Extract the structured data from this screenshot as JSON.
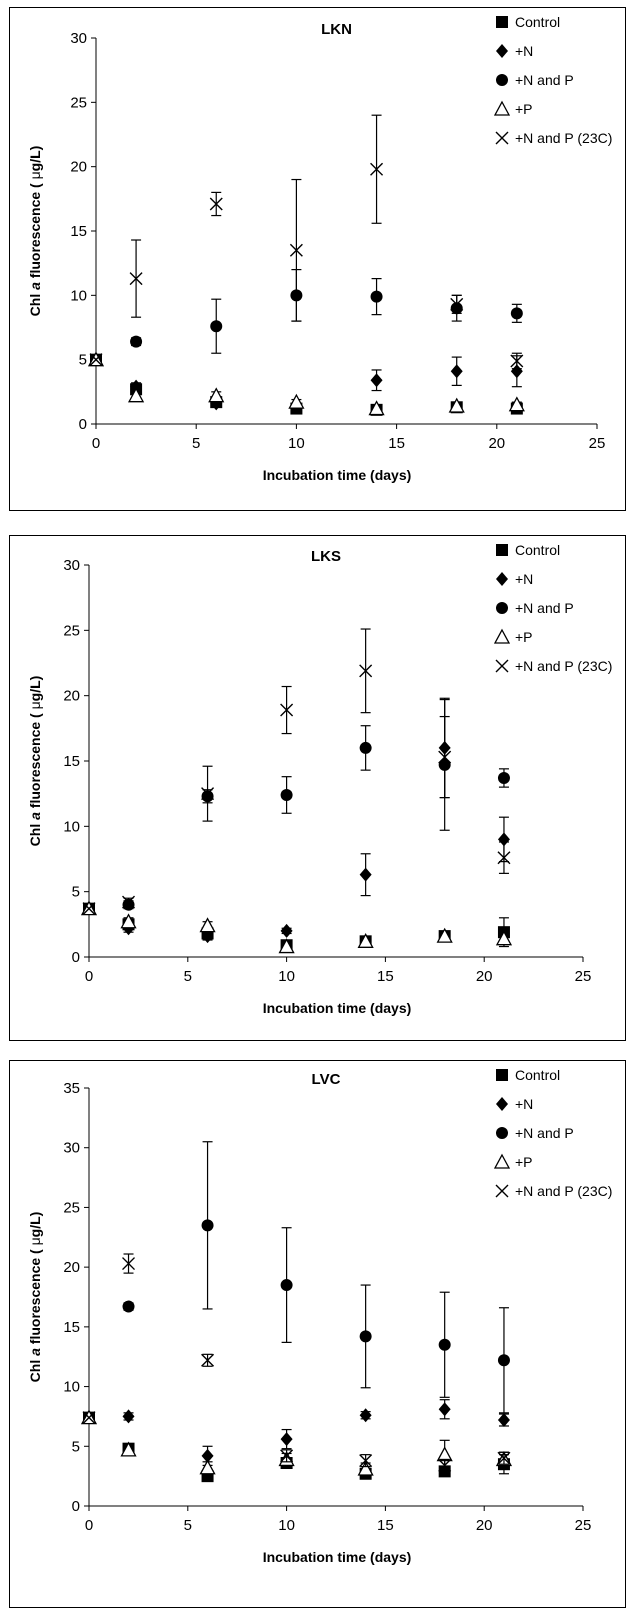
{
  "legend": [
    {
      "key": "control",
      "label": "Control",
      "marker": "square-filled"
    },
    {
      "key": "n",
      "label": "+N",
      "marker": "diamond-filled"
    },
    {
      "key": "np",
      "label": "+N and P",
      "marker": "circle-filled"
    },
    {
      "key": "p",
      "label": "+P",
      "marker": "triangle-open"
    },
    {
      "key": "np23",
      "label": "+N and P (23C)",
      "marker": "x-cross"
    }
  ],
  "chart_data": [
    {
      "type": "scatter",
      "title": "LKN",
      "xlabel": "Incubation time (days)",
      "ylabel_parts": [
        "Chl ",
        "a",
        " fluorescence ( ",
        "μ",
        "g/L)"
      ],
      "xlim": [
        0,
        25
      ],
      "ylim": [
        0,
        30
      ],
      "xticks": [
        0,
        5,
        10,
        15,
        20,
        25
      ],
      "yticks": [
        0,
        5,
        10,
        15,
        20,
        25,
        30
      ],
      "legend_position": "top-right",
      "series": [
        {
          "key": "control",
          "name": "Control",
          "points": [
            [
              0,
              5,
              0
            ],
            [
              2,
              2.7,
              0.3
            ],
            [
              6,
              1.7,
              0.3
            ],
            [
              10,
              1.2,
              0.2
            ],
            [
              14,
              1.1,
              0.2
            ],
            [
              18,
              1.3,
              0.2
            ],
            [
              21,
              1.2,
              0.2
            ]
          ]
        },
        {
          "key": "n",
          "name": "+N",
          "points": [
            [
              0,
              5,
              0
            ],
            [
              2,
              2.9,
              0.3
            ],
            [
              6,
              1.6,
              0.3
            ],
            [
              10,
              1.3,
              0.2
            ],
            [
              14,
              3.4,
              0.8
            ],
            [
              18,
              4.1,
              1.1
            ],
            [
              21,
              4.1,
              1.2
            ]
          ]
        },
        {
          "key": "np",
          "name": "+N and P",
          "points": [
            [
              0,
              5,
              0
            ],
            [
              2,
              6.4,
              0.3
            ],
            [
              6,
              7.6,
              2.1
            ],
            [
              10,
              10.0,
              2.0
            ],
            [
              14,
              9.9,
              1.4
            ],
            [
              18,
              9.0,
              1.0
            ],
            [
              21,
              8.6,
              0.7
            ]
          ]
        },
        {
          "key": "p",
          "name": "+P",
          "points": [
            [
              0,
              5,
              0
            ],
            [
              2,
              2.2,
              0.3
            ],
            [
              6,
              2.2,
              0.3
            ],
            [
              10,
              1.7,
              0.2
            ],
            [
              14,
              1.2,
              0.2
            ],
            [
              18,
              1.4,
              0.2
            ],
            [
              21,
              1.5,
              0.2
            ]
          ]
        },
        {
          "key": "np23",
          "name": "+N and P (23C)",
          "points": [
            [
              0,
              5,
              0
            ],
            [
              2,
              11.3,
              3.0
            ],
            [
              6,
              17.1,
              0.9
            ],
            [
              10,
              13.5,
              5.5
            ],
            [
              14,
              19.8,
              4.2
            ],
            [
              18,
              9.3,
              0.7
            ],
            [
              21,
              4.9,
              0.6
            ]
          ]
        }
      ]
    },
    {
      "type": "scatter",
      "title": "LKS",
      "xlabel": "Incubation time (days)",
      "ylabel_parts": [
        "Chl ",
        "a",
        " fluorescence ( ",
        "μ",
        "g/L)"
      ],
      "xlim": [
        0,
        25
      ],
      "ylim": [
        0,
        30
      ],
      "xticks": [
        0,
        5,
        10,
        15,
        20,
        25
      ],
      "yticks": [
        0,
        5,
        10,
        15,
        20,
        25,
        30
      ],
      "legend_position": "top-right",
      "series": [
        {
          "key": "control",
          "name": "Control",
          "points": [
            [
              0,
              3.7,
              0
            ],
            [
              2,
              2.5,
              0.3
            ],
            [
              6,
              1.8,
              0.3
            ],
            [
              10,
              0.9,
              0.2
            ],
            [
              14,
              1.2,
              0.2
            ],
            [
              18,
              1.6,
              0.2
            ],
            [
              21,
              1.9,
              1.1
            ]
          ]
        },
        {
          "key": "n",
          "name": "+N",
          "points": [
            [
              0,
              3.7,
              0
            ],
            [
              2,
              2.2,
              0.3
            ],
            [
              6,
              1.6,
              0.3
            ],
            [
              10,
              2.0,
              0.2
            ],
            [
              14,
              6.3,
              1.6
            ],
            [
              18,
              16.0,
              3.8
            ],
            [
              21,
              9.0,
              1.7
            ]
          ]
        },
        {
          "key": "np",
          "name": "+N and P",
          "points": [
            [
              0,
              3.7,
              0
            ],
            [
              2,
              4.0,
              0.3
            ],
            [
              6,
              12.3,
              0.5
            ],
            [
              10,
              12.4,
              1.4
            ],
            [
              14,
              16.0,
              1.7
            ],
            [
              18,
              14.7,
              5.0
            ],
            [
              21,
              13.7,
              0.7
            ]
          ]
        },
        {
          "key": "p",
          "name": "+P",
          "points": [
            [
              0,
              3.7,
              0
            ],
            [
              2,
              2.7,
              0.3
            ],
            [
              6,
              2.4,
              0.3
            ],
            [
              10,
              0.8,
              0.2
            ],
            [
              14,
              1.2,
              0.2
            ],
            [
              18,
              1.6,
              0.2
            ],
            [
              21,
              1.4,
              0.2
            ]
          ]
        },
        {
          "key": "np23",
          "name": "+N and P (23C)",
          "points": [
            [
              0,
              3.7,
              0
            ],
            [
              2,
              4.2,
              0.3
            ],
            [
              6,
              12.5,
              2.1
            ],
            [
              10,
              18.9,
              1.8
            ],
            [
              14,
              21.9,
              3.2
            ],
            [
              18,
              15.3,
              3.1
            ],
            [
              21,
              7.6,
              1.2
            ]
          ]
        }
      ]
    },
    {
      "type": "scatter",
      "title": "LVC",
      "xlabel": "Incubation time (days)",
      "ylabel_parts": [
        "Chl ",
        "a",
        " fluorescence ( ",
        "μ",
        "g/L)"
      ],
      "xlim": [
        0,
        25
      ],
      "ylim": [
        0,
        35
      ],
      "xticks": [
        0,
        5,
        10,
        15,
        20,
        25
      ],
      "yticks": [
        0,
        5,
        10,
        15,
        20,
        25,
        30,
        35
      ],
      "legend_position": "top-right",
      "series": [
        {
          "key": "control",
          "name": "Control",
          "points": [
            [
              0,
              7.4,
              0
            ],
            [
              2,
              4.8,
              0.3
            ],
            [
              6,
              2.5,
              0.3
            ],
            [
              10,
              3.6,
              0.3
            ],
            [
              14,
              2.7,
              0.3
            ],
            [
              18,
              2.9,
              0.3
            ],
            [
              21,
              3.5,
              0.8
            ]
          ]
        },
        {
          "key": "n",
          "name": "+N",
          "points": [
            [
              0,
              7.4,
              0
            ],
            [
              2,
              7.5,
              0.3
            ],
            [
              6,
              4.2,
              0.8
            ],
            [
              10,
              5.6,
              0.8
            ],
            [
              14,
              7.6,
              0.3
            ],
            [
              18,
              8.1,
              0.8
            ],
            [
              21,
              7.2,
              0.5
            ]
          ]
        },
        {
          "key": "np",
          "name": "+N and P",
          "points": [
            [
              0,
              7.4,
              0
            ],
            [
              2,
              16.7,
              0.3
            ],
            [
              6,
              23.5,
              7.0
            ],
            [
              10,
              18.5,
              4.8
            ],
            [
              14,
              14.2,
              4.3
            ],
            [
              18,
              13.5,
              4.4
            ],
            [
              21,
              12.2,
              4.4
            ]
          ]
        },
        {
          "key": "p",
          "name": "+P",
          "points": [
            [
              0,
              7.4,
              0
            ],
            [
              2,
              4.7,
              0.3
            ],
            [
              6,
              3.2,
              0.5
            ],
            [
              10,
              3.9,
              0.5
            ],
            [
              14,
              3.1,
              0.5
            ],
            [
              18,
              4.3,
              1.2
            ],
            [
              21,
              3.9,
              0.6
            ]
          ]
        },
        {
          "key": "np23",
          "name": "+N and P (23C)",
          "points": [
            [
              0,
              7.4,
              0
            ],
            [
              2,
              20.3,
              0.8
            ],
            [
              6,
              12.2,
              0.5
            ],
            [
              10,
              4.2,
              0.5
            ],
            [
              14,
              3.8,
              0.5
            ],
            [
              18,
              3.4,
              0.5
            ],
            [
              21,
              4.0,
              0.5
            ]
          ]
        }
      ]
    }
  ]
}
